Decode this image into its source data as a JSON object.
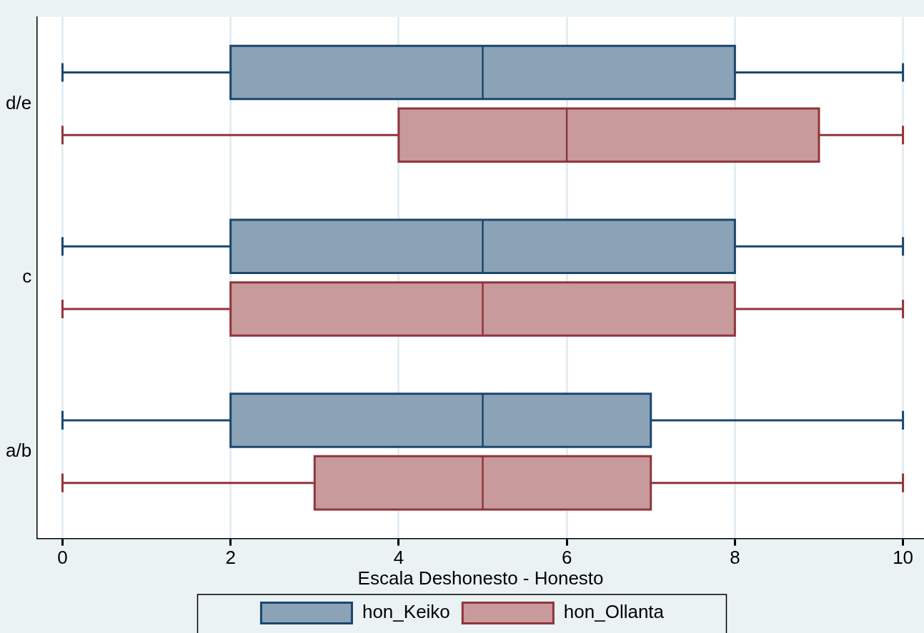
{
  "chart_data": {
    "type": "box",
    "orientation": "horizontal",
    "xlabel": "Escala Deshonesto - Honesto",
    "categories": [
      "d/e",
      "c",
      "a/b"
    ],
    "series": [
      {
        "name": "hon_Keiko",
        "color": "#8ca3b7",
        "boxes": [
          {
            "low": 0,
            "q1": 2,
            "median": 5,
            "q3": 8,
            "high": 10
          },
          {
            "low": 0,
            "q1": 2,
            "median": 5,
            "q3": 8,
            "high": 10
          },
          {
            "low": 0,
            "q1": 2,
            "median": 5,
            "q3": 7,
            "high": 10
          }
        ]
      },
      {
        "name": "hon_Ollanta",
        "color": "#c89a9c",
        "boxes": [
          {
            "low": 0,
            "q1": 4,
            "median": 6,
            "q3": 9,
            "high": 10
          },
          {
            "low": 0,
            "q1": 2,
            "median": 5,
            "q3": 8,
            "high": 10
          },
          {
            "low": 0,
            "q1": 3,
            "median": 5,
            "q3": 7,
            "high": 10
          }
        ]
      }
    ],
    "xlim": [
      -0.3,
      10.25
    ],
    "xticks": [
      0,
      2,
      4,
      6,
      8,
      10
    ],
    "grid": "x",
    "legend": "bottom"
  }
}
